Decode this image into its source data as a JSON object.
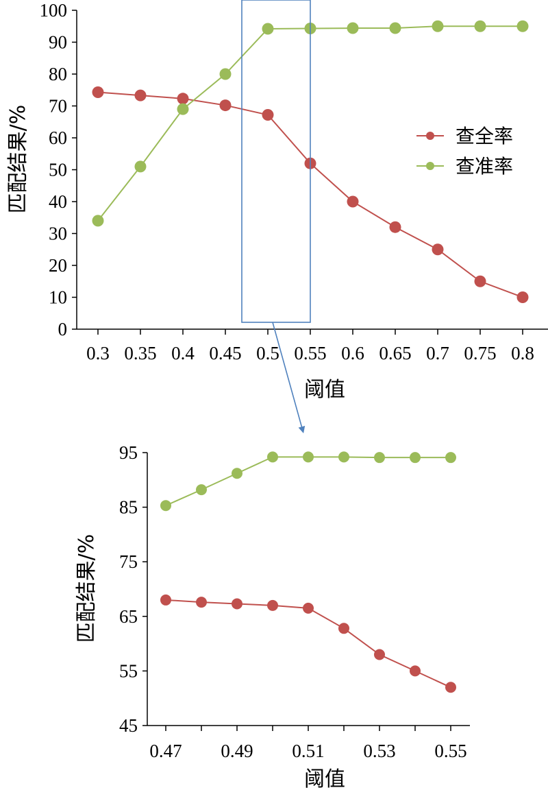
{
  "chart_data": [
    {
      "type": "line",
      "x": [
        0.3,
        0.35,
        0.4,
        0.45,
        0.5,
        0.55,
        0.6,
        0.65,
        0.7,
        0.75,
        0.8
      ],
      "x_tick_labels": [
        "0.3",
        "0.35",
        "0.4",
        "0.45",
        "0.5",
        "0.55",
        "0.6",
        "0.65",
        "0.7",
        "0.75",
        "0.8"
      ],
      "y_ticks": [
        0,
        10,
        20,
        30,
        40,
        50,
        60,
        70,
        80,
        90,
        100
      ],
      "ylim": [
        0,
        100
      ],
      "xlabel": "阈值",
      "ylabel": "匹配结果/%",
      "legend_position": "right",
      "series": [
        {
          "name": "查全率",
          "color": "#c0504d",
          "values": [
            74.3,
            73.3,
            72.3,
            70.2,
            67.2,
            52,
            40,
            32,
            25,
            15,
            10
          ]
        },
        {
          "name": "查准率",
          "color": "#9bbb59",
          "values": [
            34,
            51,
            69,
            80,
            94.2,
            94.3,
            94.4,
            94.4,
            95,
            95,
            95
          ]
        }
      ],
      "highlight_box_range": [
        0.47,
        0.55
      ]
    },
    {
      "type": "line",
      "x": [
        0.47,
        0.48,
        0.49,
        0.5,
        0.51,
        0.52,
        0.53,
        0.54,
        0.55
      ],
      "x_tick_labels": [
        "0.47",
        "0.49",
        "0.51",
        "0.53",
        "0.55"
      ],
      "x_tick_values": [
        0.47,
        0.49,
        0.51,
        0.53,
        0.55
      ],
      "y_ticks": [
        45,
        55,
        65,
        75,
        85,
        95
      ],
      "ylim": [
        45,
        95
      ],
      "xlabel": "阈值",
      "ylabel": "匹配结果/%",
      "series": [
        {
          "name": "查全率",
          "color": "#c0504d",
          "values": [
            68,
            67.6,
            67.3,
            67,
            66.5,
            62.8,
            58,
            55,
            52
          ]
        },
        {
          "name": "查准率",
          "color": "#9bbb59",
          "values": [
            85.3,
            88.2,
            91.2,
            94.2,
            94.2,
            94.2,
            94.1,
            94.1,
            94.1
          ]
        }
      ]
    }
  ],
  "connector_color": "#4f81bd"
}
